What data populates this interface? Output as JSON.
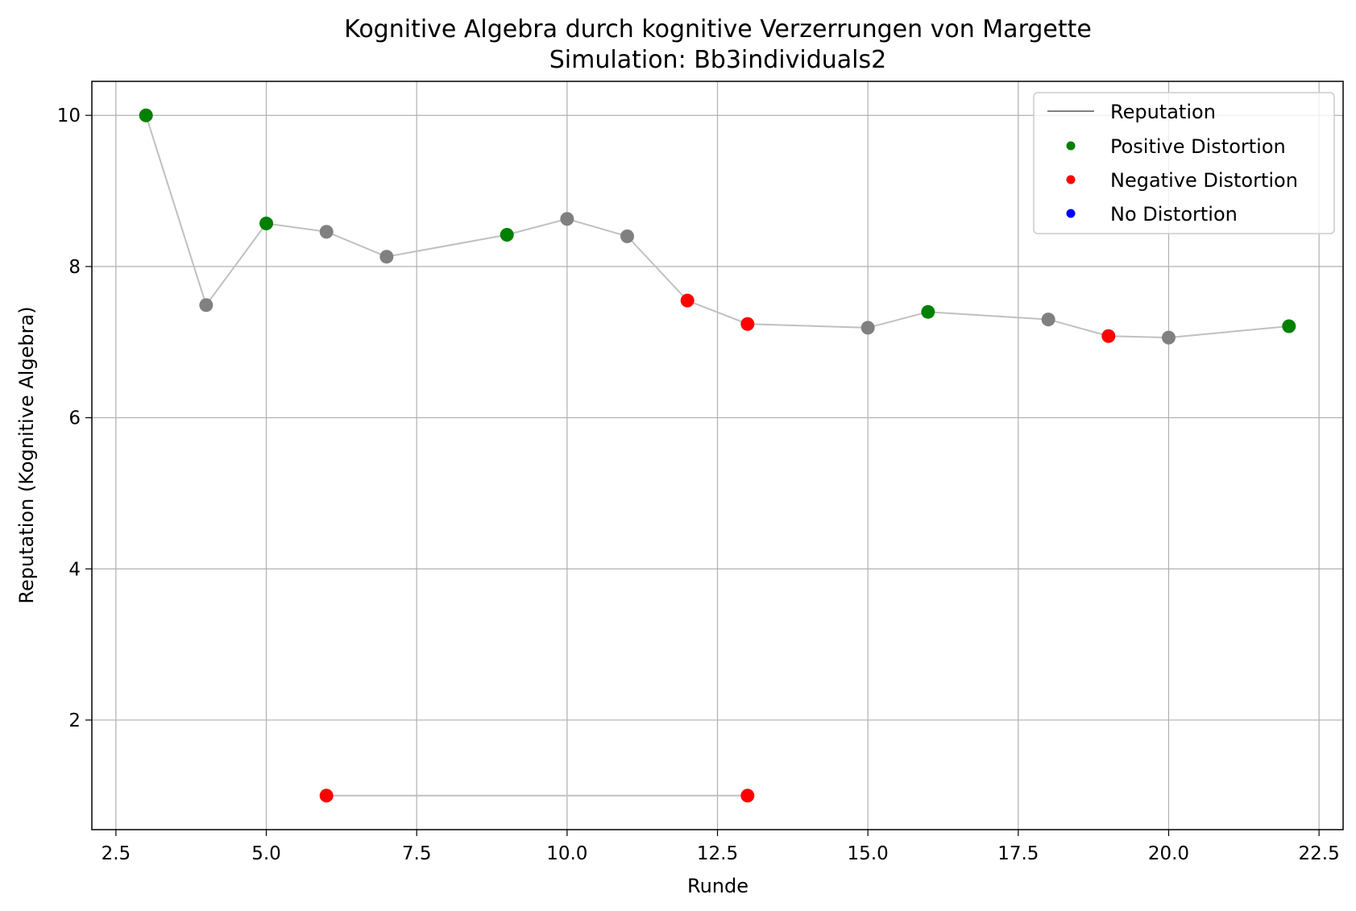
{
  "chart_data": {
    "type": "scatter",
    "title": "Kognitive Algebra durch kognitive Verzerrungen von Margette",
    "subtitle": "Simulation: Bb3individuals2",
    "xlabel": "Runde",
    "ylabel": "Reputation (Kognitive Algebra)",
    "xlim": [
      2.1,
      22.9
    ],
    "ylim": [
      0.55,
      10.45
    ],
    "xticks": [
      2.5,
      5.0,
      7.5,
      10.0,
      12.5,
      15.0,
      17.5,
      20.0,
      22.5
    ],
    "xtick_labels": [
      "2.5",
      "5.0",
      "7.5",
      "10.0",
      "12.5",
      "15.0",
      "17.5",
      "20.0",
      "22.5"
    ],
    "yticks": [
      2,
      4,
      6,
      8,
      10
    ],
    "ytick_labels": [
      "2",
      "4",
      "6",
      "8",
      "10"
    ],
    "grid": true,
    "legend_position": "top-right",
    "legend": [
      {
        "label": "Reputation",
        "kind": "line",
        "color": "#808080"
      },
      {
        "label": "Positive Distortion",
        "kind": "marker",
        "color": "#008000"
      },
      {
        "label": "Negative Distortion",
        "kind": "marker",
        "color": "#ff0000"
      },
      {
        "label": "No Distortion",
        "kind": "marker",
        "color": "#0000ff"
      }
    ],
    "colors": {
      "positive": "#008000",
      "negative": "#ff0000",
      "none": "#808080",
      "line": "#c0c0c0",
      "grid": "#b0b0b0"
    },
    "series": [
      {
        "name": "Reputation",
        "points": [
          {
            "x": 3,
            "y": 10.0,
            "distortion": "positive"
          },
          {
            "x": 4,
            "y": 7.49,
            "distortion": "none"
          },
          {
            "x": 5,
            "y": 8.57,
            "distortion": "positive"
          },
          {
            "x": 6,
            "y": 8.46,
            "distortion": "none"
          },
          {
            "x": 7,
            "y": 8.13,
            "distortion": "none"
          },
          {
            "x": 9,
            "y": 8.42,
            "distortion": "positive"
          },
          {
            "x": 10,
            "y": 8.63,
            "distortion": "none"
          },
          {
            "x": 11,
            "y": 8.4,
            "distortion": "none"
          },
          {
            "x": 12,
            "y": 7.55,
            "distortion": "negative"
          },
          {
            "x": 13,
            "y": 7.24,
            "distortion": "negative"
          },
          {
            "x": 15,
            "y": 7.19,
            "distortion": "none"
          },
          {
            "x": 16,
            "y": 7.4,
            "distortion": "positive"
          },
          {
            "x": 18,
            "y": 7.3,
            "distortion": "none"
          },
          {
            "x": 19,
            "y": 7.08,
            "distortion": "negative"
          },
          {
            "x": 20,
            "y": 7.06,
            "distortion": "none"
          },
          {
            "x": 22,
            "y": 7.21,
            "distortion": "positive"
          }
        ]
      },
      {
        "name": "",
        "points": [
          {
            "x": 6,
            "y": 1.0,
            "distortion": "negative"
          },
          {
            "x": 13,
            "y": 1.0,
            "distortion": "negative"
          }
        ]
      }
    ]
  }
}
